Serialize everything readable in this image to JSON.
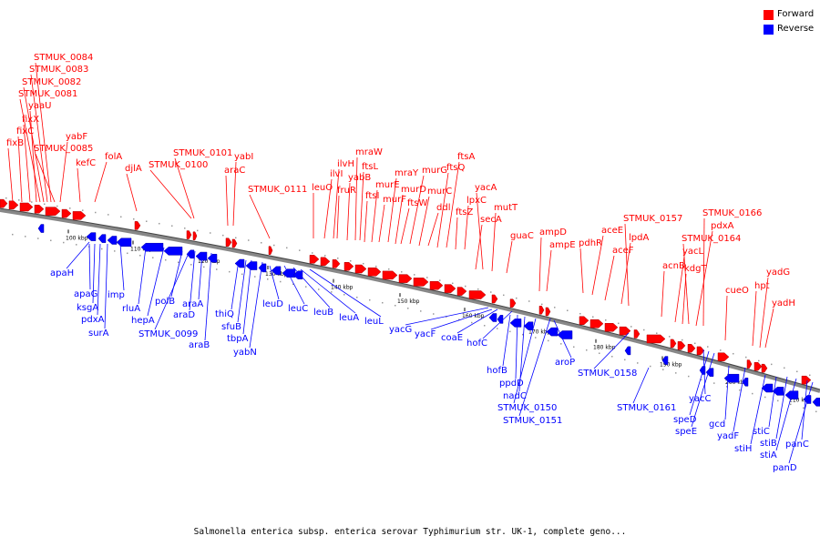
{
  "legend": {
    "forward": {
      "label": "Forward",
      "color": "#ff0000"
    },
    "reverse": {
      "label": "Reverse",
      "color": "#0000ff"
    }
  },
  "caption": "Salmonella enterica subsp. enterica serovar Typhimurium str. UK-1, complete geno...",
  "ticks": [
    "100 kbp",
    "110 kbp",
    "120 kbp",
    "130 kbp",
    "140 kbp",
    "150 kbp",
    "160 kbp",
    "170 kbp",
    "180 kbp",
    "190 kbp",
    "200 kbp",
    "210 kbp"
  ],
  "forward_labels": [
    "fixB",
    "fixC",
    "fixX",
    "yaaU",
    "STMUK_0081",
    "STMUK_0082",
    "STMUK_0083",
    "STMUK_0084",
    "STMUK_0085",
    "yabF",
    "kefC",
    "folA",
    "djlA",
    "STMUK_0100",
    "STMUK_0101",
    "araC",
    "yabI",
    "STMUK_0111",
    "leuO",
    "ilvI",
    "ilvH",
    "fruR",
    "yabB",
    "mraW",
    "ftsL",
    "ftsI",
    "murE",
    "murF",
    "mraY",
    "murD",
    "ftsW",
    "murG",
    "murC",
    "ddl",
    "ftsQ",
    "ftsA",
    "ftsZ",
    "lpxC",
    "secA",
    "yacA",
    "mutT",
    "guaC",
    "ampD",
    "ampE",
    "pdhR",
    "aceE",
    "aceF",
    "lpdA",
    "STMUK_0157",
    "acnB",
    "yacL",
    "kdgT",
    "STMUK_0164",
    "pdxA",
    "STMUK_0166",
    "cueO",
    "hpt",
    "yadG",
    "yadH"
  ],
  "reverse_labels": [
    "apaH",
    "apaG",
    "ksgA",
    "pdxA",
    "surA",
    "imp",
    "rluA",
    "hepA",
    "polB",
    "STMUK_0099",
    "araD",
    "araA",
    "araB",
    "thiQ",
    "sfuB",
    "tbpA",
    "yabN",
    "leuD",
    "leuC",
    "leuB",
    "leuA",
    "leuL",
    "yacG",
    "yacF",
    "coaE",
    "hofC",
    "hofB",
    "ppdD",
    "nadC",
    "STMUK_0150",
    "STMUK_0151",
    "aroP",
    "STMUK_0158",
    "STMUK_0161",
    "yacC",
    "speD",
    "speE",
    "gcd",
    "yadF",
    "stiH",
    "stiC",
    "stiB",
    "stiA",
    "panC",
    "panD"
  ]
}
